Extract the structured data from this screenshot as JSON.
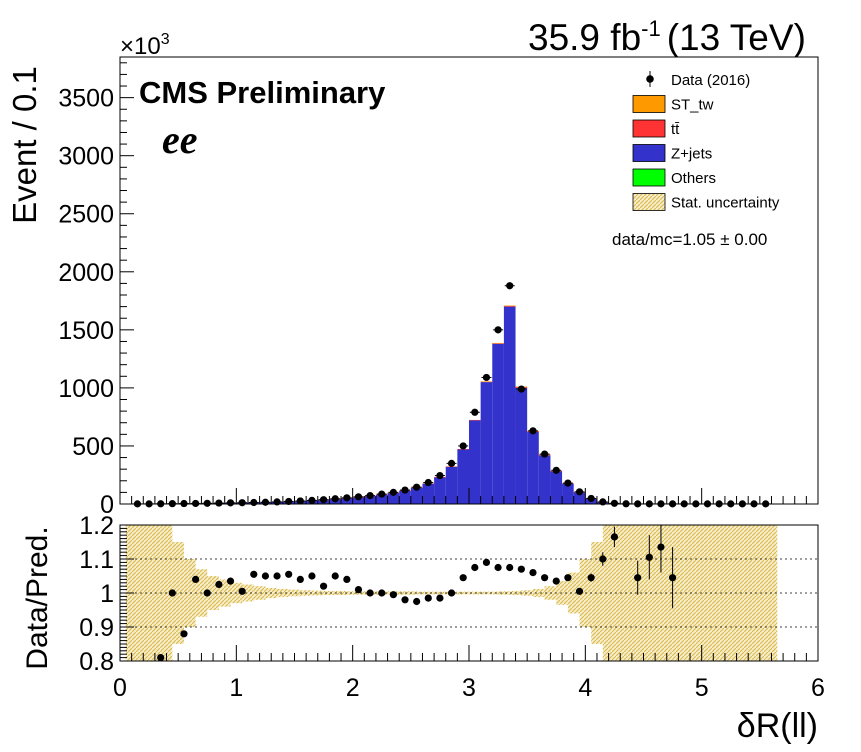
{
  "header": {
    "lumi_label": "35.9 fb",
    "lumi_exponent": "-1",
    "energy_label": "(13 TeV)",
    "cms_label": "CMS Preliminary",
    "channel_label": "ee",
    "ratio_summary": "data/mc=1.05 ± 0.00",
    "multiplier": "×10",
    "multiplier_exponent": "3"
  },
  "chart_data": [
    {
      "type": "bar",
      "stacked": true,
      "ylabel": "Event / 0.1",
      "xlim": [
        0,
        6
      ],
      "ylim": [
        0,
        3850
      ],
      "y_multiplier_note": "×10^3",
      "bin_width": 0.1,
      "yticks": [
        0,
        500,
        1000,
        1500,
        2000,
        2500,
        3000,
        3500
      ],
      "legend": {
        "position": "top-right",
        "entries": [
          {
            "label": "Data (2016)",
            "style": "marker",
            "color": "#000000"
          },
          {
            "label": "ST_tw",
            "style": "box",
            "color": "#ff9900"
          },
          {
            "label": "tt̄",
            "style": "box",
            "color": "#ff3333"
          },
          {
            "label": "Z+jets",
            "style": "box",
            "color": "#3333cc"
          },
          {
            "label": "Others",
            "style": "box",
            "color": "#00ff00"
          },
          {
            "label": "Stat. uncertainty",
            "style": "hatch",
            "color": "#d9b84a"
          }
        ]
      },
      "x": [
        0.15,
        0.25,
        0.35,
        0.45,
        0.55,
        0.65,
        0.75,
        0.85,
        0.95,
        1.05,
        1.15,
        1.25,
        1.35,
        1.45,
        1.55,
        1.65,
        1.75,
        1.85,
        1.95,
        2.05,
        2.15,
        2.25,
        2.35,
        2.45,
        2.55,
        2.65,
        2.75,
        2.85,
        2.95,
        3.05,
        3.15,
        3.25,
        3.35,
        3.45,
        3.55,
        3.65,
        3.75,
        3.85,
        3.95,
        4.05,
        4.15,
        4.25,
        4.35,
        4.45,
        4.55,
        4.65,
        4.75,
        4.85,
        4.95,
        5.05,
        5.15,
        5.25,
        5.35,
        5.45,
        5.55
      ],
      "series": [
        {
          "name": "Z+jets",
          "color": "#3333cc",
          "values": [
            1,
            1,
            2,
            3,
            4,
            5,
            6,
            8,
            9,
            10,
            12,
            14,
            17,
            20,
            24,
            29,
            35,
            42,
            50,
            58,
            68,
            80,
            95,
            115,
            140,
            175,
            230,
            320,
            470,
            720,
            1050,
            1380,
            1700,
            1000,
            620,
            420,
            280,
            175,
            100,
            45,
            15,
            5,
            2,
            1,
            0.5,
            0.3,
            0.2,
            0.1,
            0.1,
            0.1,
            0.1,
            0.1,
            0.1,
            0.1,
            0.1
          ]
        },
        {
          "name": "tt̄",
          "color": "#ff3333",
          "values": [
            0,
            0,
            0,
            0,
            0,
            0,
            0,
            0,
            0,
            0,
            0,
            0,
            0,
            0,
            0,
            0,
            1,
            1,
            1,
            1,
            2,
            2,
            2,
            2,
            3,
            3,
            3,
            3,
            4,
            4,
            5,
            6,
            8,
            10,
            9,
            7,
            5,
            4,
            3,
            2,
            1,
            1,
            0,
            0,
            0,
            0,
            0,
            0,
            0,
            0,
            0,
            0,
            0,
            0,
            0
          ]
        },
        {
          "name": "ST_tw",
          "color": "#ff9900",
          "values": [
            0,
            0,
            0,
            0,
            0,
            0,
            0,
            0,
            0,
            0,
            0,
            0,
            0,
            0,
            0,
            0,
            0,
            0,
            0,
            0,
            0,
            0,
            0,
            0,
            0,
            0,
            0,
            0,
            0,
            0,
            1,
            1,
            1,
            1,
            1,
            1,
            0,
            0,
            0,
            0,
            0,
            0,
            0,
            0,
            0,
            0,
            0,
            0,
            0,
            0,
            0,
            0,
            0,
            0,
            0
          ]
        },
        {
          "name": "Others",
          "color": "#00ff00",
          "values": [
            0,
            0,
            0,
            0,
            0,
            0,
            0,
            0,
            0,
            0,
            0,
            0,
            0,
            0,
            0,
            0,
            0,
            0,
            0,
            0,
            0,
            0,
            0,
            0,
            0,
            0,
            0,
            0,
            0,
            0,
            0,
            0,
            0,
            0,
            0,
            0,
            0,
            0,
            0,
            0,
            0,
            0,
            0,
            0,
            0,
            0,
            0,
            0,
            0,
            0,
            0,
            0,
            0,
            0,
            0
          ]
        }
      ],
      "data_points": {
        "name": "Data (2016)",
        "x": [
          0.15,
          0.25,
          0.35,
          0.45,
          0.55,
          0.65,
          0.75,
          0.85,
          0.95,
          1.05,
          1.15,
          1.25,
          1.35,
          1.45,
          1.55,
          1.65,
          1.75,
          1.85,
          1.95,
          2.05,
          2.15,
          2.25,
          2.35,
          2.45,
          2.55,
          2.65,
          2.75,
          2.85,
          2.95,
          3.05,
          3.15,
          3.25,
          3.35,
          3.45,
          3.55,
          3.65,
          3.75,
          3.85,
          3.95,
          4.05,
          4.15,
          4.25,
          4.35,
          4.45,
          4.55,
          4.65,
          4.75,
          4.85,
          4.95,
          5.05,
          5.15,
          5.25,
          5.35,
          5.45,
          5.55
        ],
        "y": [
          1,
          1,
          2,
          3,
          4,
          5,
          6,
          8,
          10,
          11,
          13,
          15,
          18,
          22,
          26,
          31,
          37,
          45,
          53,
          62,
          72,
          85,
          100,
          120,
          145,
          185,
          245,
          350,
          500,
          790,
          1090,
          1500,
          1880,
          990,
          630,
          430,
          290,
          180,
          105,
          48,
          18,
          6,
          2,
          1,
          1,
          1,
          1,
          1,
          1,
          1,
          1,
          1,
          1,
          1,
          1
        ]
      }
    },
    {
      "type": "scatter",
      "xlabel": "δR(ll)",
      "ylabel": "Data/Pred.",
      "xlim": [
        0,
        6
      ],
      "ylim": [
        0.8,
        1.2
      ],
      "xticks": [
        0,
        1,
        2,
        3,
        4,
        5,
        6
      ],
      "yticks": [
        0.8,
        0.9,
        1,
        1.1,
        1.2
      ],
      "gridlines_y": [
        0.9,
        1.0,
        1.1
      ],
      "x": [
        0.35,
        0.45,
        0.55,
        0.65,
        0.75,
        0.85,
        0.95,
        1.05,
        1.15,
        1.25,
        1.35,
        1.45,
        1.55,
        1.65,
        1.75,
        1.85,
        1.95,
        2.05,
        2.15,
        2.25,
        2.35,
        2.45,
        2.55,
        2.65,
        2.75,
        2.85,
        2.95,
        3.05,
        3.15,
        3.25,
        3.35,
        3.45,
        3.55,
        3.65,
        3.75,
        3.85,
        3.95,
        4.05,
        4.15,
        4.25,
        4.45,
        4.55,
        4.65,
        4.75
      ],
      "values": [
        0.81,
        1.0,
        0.88,
        1.04,
        1.0,
        1.025,
        1.035,
        1.005,
        1.055,
        1.05,
        1.05,
        1.055,
        1.04,
        1.05,
        1.02,
        1.05,
        1.04,
        1.01,
        1.0,
        1.0,
        0.995,
        0.98,
        0.975,
        0.985,
        0.985,
        1.0,
        1.045,
        1.075,
        1.09,
        1.075,
        1.075,
        1.07,
        1.06,
        1.045,
        1.035,
        1.045,
        1.005,
        1.045,
        1.1,
        1.165,
        1.045,
        1.105,
        1.135,
        1.045
      ],
      "errors": [
        0.01,
        0.008,
        0.006,
        0.005,
        0.004,
        0.004,
        0.004,
        0.003,
        0.003,
        0.003,
        0.003,
        0.003,
        0.003,
        0.003,
        0.003,
        0.002,
        0.002,
        0.002,
        0.002,
        0.002,
        0.002,
        0.002,
        0.002,
        0.002,
        0.002,
        0.002,
        0.002,
        0.002,
        0.002,
        0.002,
        0.002,
        0.002,
        0.002,
        0.003,
        0.004,
        0.005,
        0.008,
        0.012,
        0.02,
        0.03,
        0.05,
        0.065,
        0.075,
        0.09
      ],
      "band_halfwidth": [
        0.2,
        0.2,
        0.2,
        0.2,
        0.15,
        0.1,
        0.07,
        0.05,
        0.04,
        0.03,
        0.025,
        0.02,
        0.015,
        0.012,
        0.01,
        0.008,
        0.007,
        0.006,
        0.006,
        0.005,
        0.005,
        0.005,
        0.005,
        0.005,
        0.005,
        0.004,
        0.004,
        0.004,
        0.004,
        0.004,
        0.004,
        0.004,
        0.005,
        0.006,
        0.008,
        0.012,
        0.02,
        0.035,
        0.06,
        0.1,
        0.15,
        0.2,
        0.2,
        0.2,
        0.2,
        0.2,
        0.2,
        0.2,
        0.2,
        0.2,
        0.2,
        0.2,
        0.2,
        0.2,
        0.2,
        0.2
      ]
    }
  ]
}
